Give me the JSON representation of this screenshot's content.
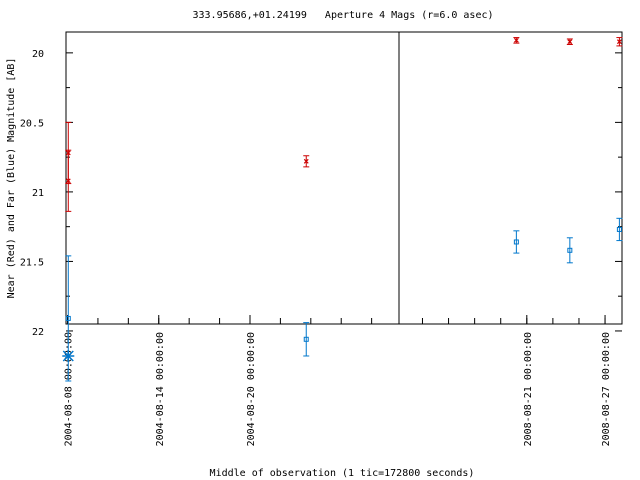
{
  "chart_data": {
    "type": "scatter",
    "title": "333.95686,+01.24199   Aperture 4 Mags (r=6.0 asec)",
    "xlabel": "Middle of observation (1 tic=172800 seconds)",
    "ylabel": "Near (Red) and Far (Blue) Magnitude [AB]",
    "y_inverted": true,
    "ylim": [
      21.95,
      19.85
    ],
    "yticks": [
      "20",
      "20.5",
      "21",
      "21.5",
      "22"
    ],
    "grid": false,
    "legend": "none",
    "broken_axis": true,
    "panels": [
      {
        "xlim_days": [
          -0.1,
          21.8
        ],
        "xticks": [
          {
            "day": 0,
            "label": "2004-08-08 00:00:00"
          },
          {
            "day": 6,
            "label": "2004-08-14 00:00:00"
          },
          {
            "day": 12,
            "label": "2004-08-20 00:00:00"
          }
        ],
        "series": [
          {
            "color": "#cc0000",
            "marker": "x",
            "points": [
              {
                "day": 0.05,
                "y": 20.72,
                "yerr": 0.22
              },
              {
                "day": 0.05,
                "y": 20.92,
                "yerr": 0.22
              },
              {
                "day": 15.7,
                "y": 20.78,
                "yerr": 0.04
              }
            ]
          },
          {
            "color": "#0077cc",
            "marker": "square",
            "points": [
              {
                "day": 0.05,
                "y": 21.91,
                "yerr": 0.45
              },
              {
                "day": 15.7,
                "y": 22.06,
                "yerr": 0.12
              }
            ]
          },
          {
            "color": "#0077cc",
            "marker": "star",
            "points": [
              {
                "day": 0.05,
                "y": 22.18,
                "yerr": 0
              }
            ]
          }
        ]
      },
      {
        "xlim_days": [
          -9.8,
          7.3
        ],
        "xticks": [
          {
            "day": 0,
            "label": "2008-08-21 00:00:00"
          },
          {
            "day": 6,
            "label": "2008-08-27 00:00:00"
          }
        ],
        "series": [
          {
            "color": "#cc0000",
            "marker": "x",
            "points": [
              {
                "day": -0.8,
                "y": 19.91,
                "yerr": 0.02
              },
              {
                "day": 3.3,
                "y": 19.92,
                "yerr": 0.02
              },
              {
                "day": 7.1,
                "y": 19.92,
                "yerr": 0.03
              }
            ]
          },
          {
            "color": "#0077cc",
            "marker": "square",
            "points": [
              {
                "day": -0.8,
                "y": 21.36,
                "yerr": 0.08
              },
              {
                "day": 3.3,
                "y": 21.42,
                "yerr": 0.09
              },
              {
                "day": 7.1,
                "y": 21.27,
                "yerr": 0.08
              }
            ]
          }
        ]
      }
    ]
  }
}
